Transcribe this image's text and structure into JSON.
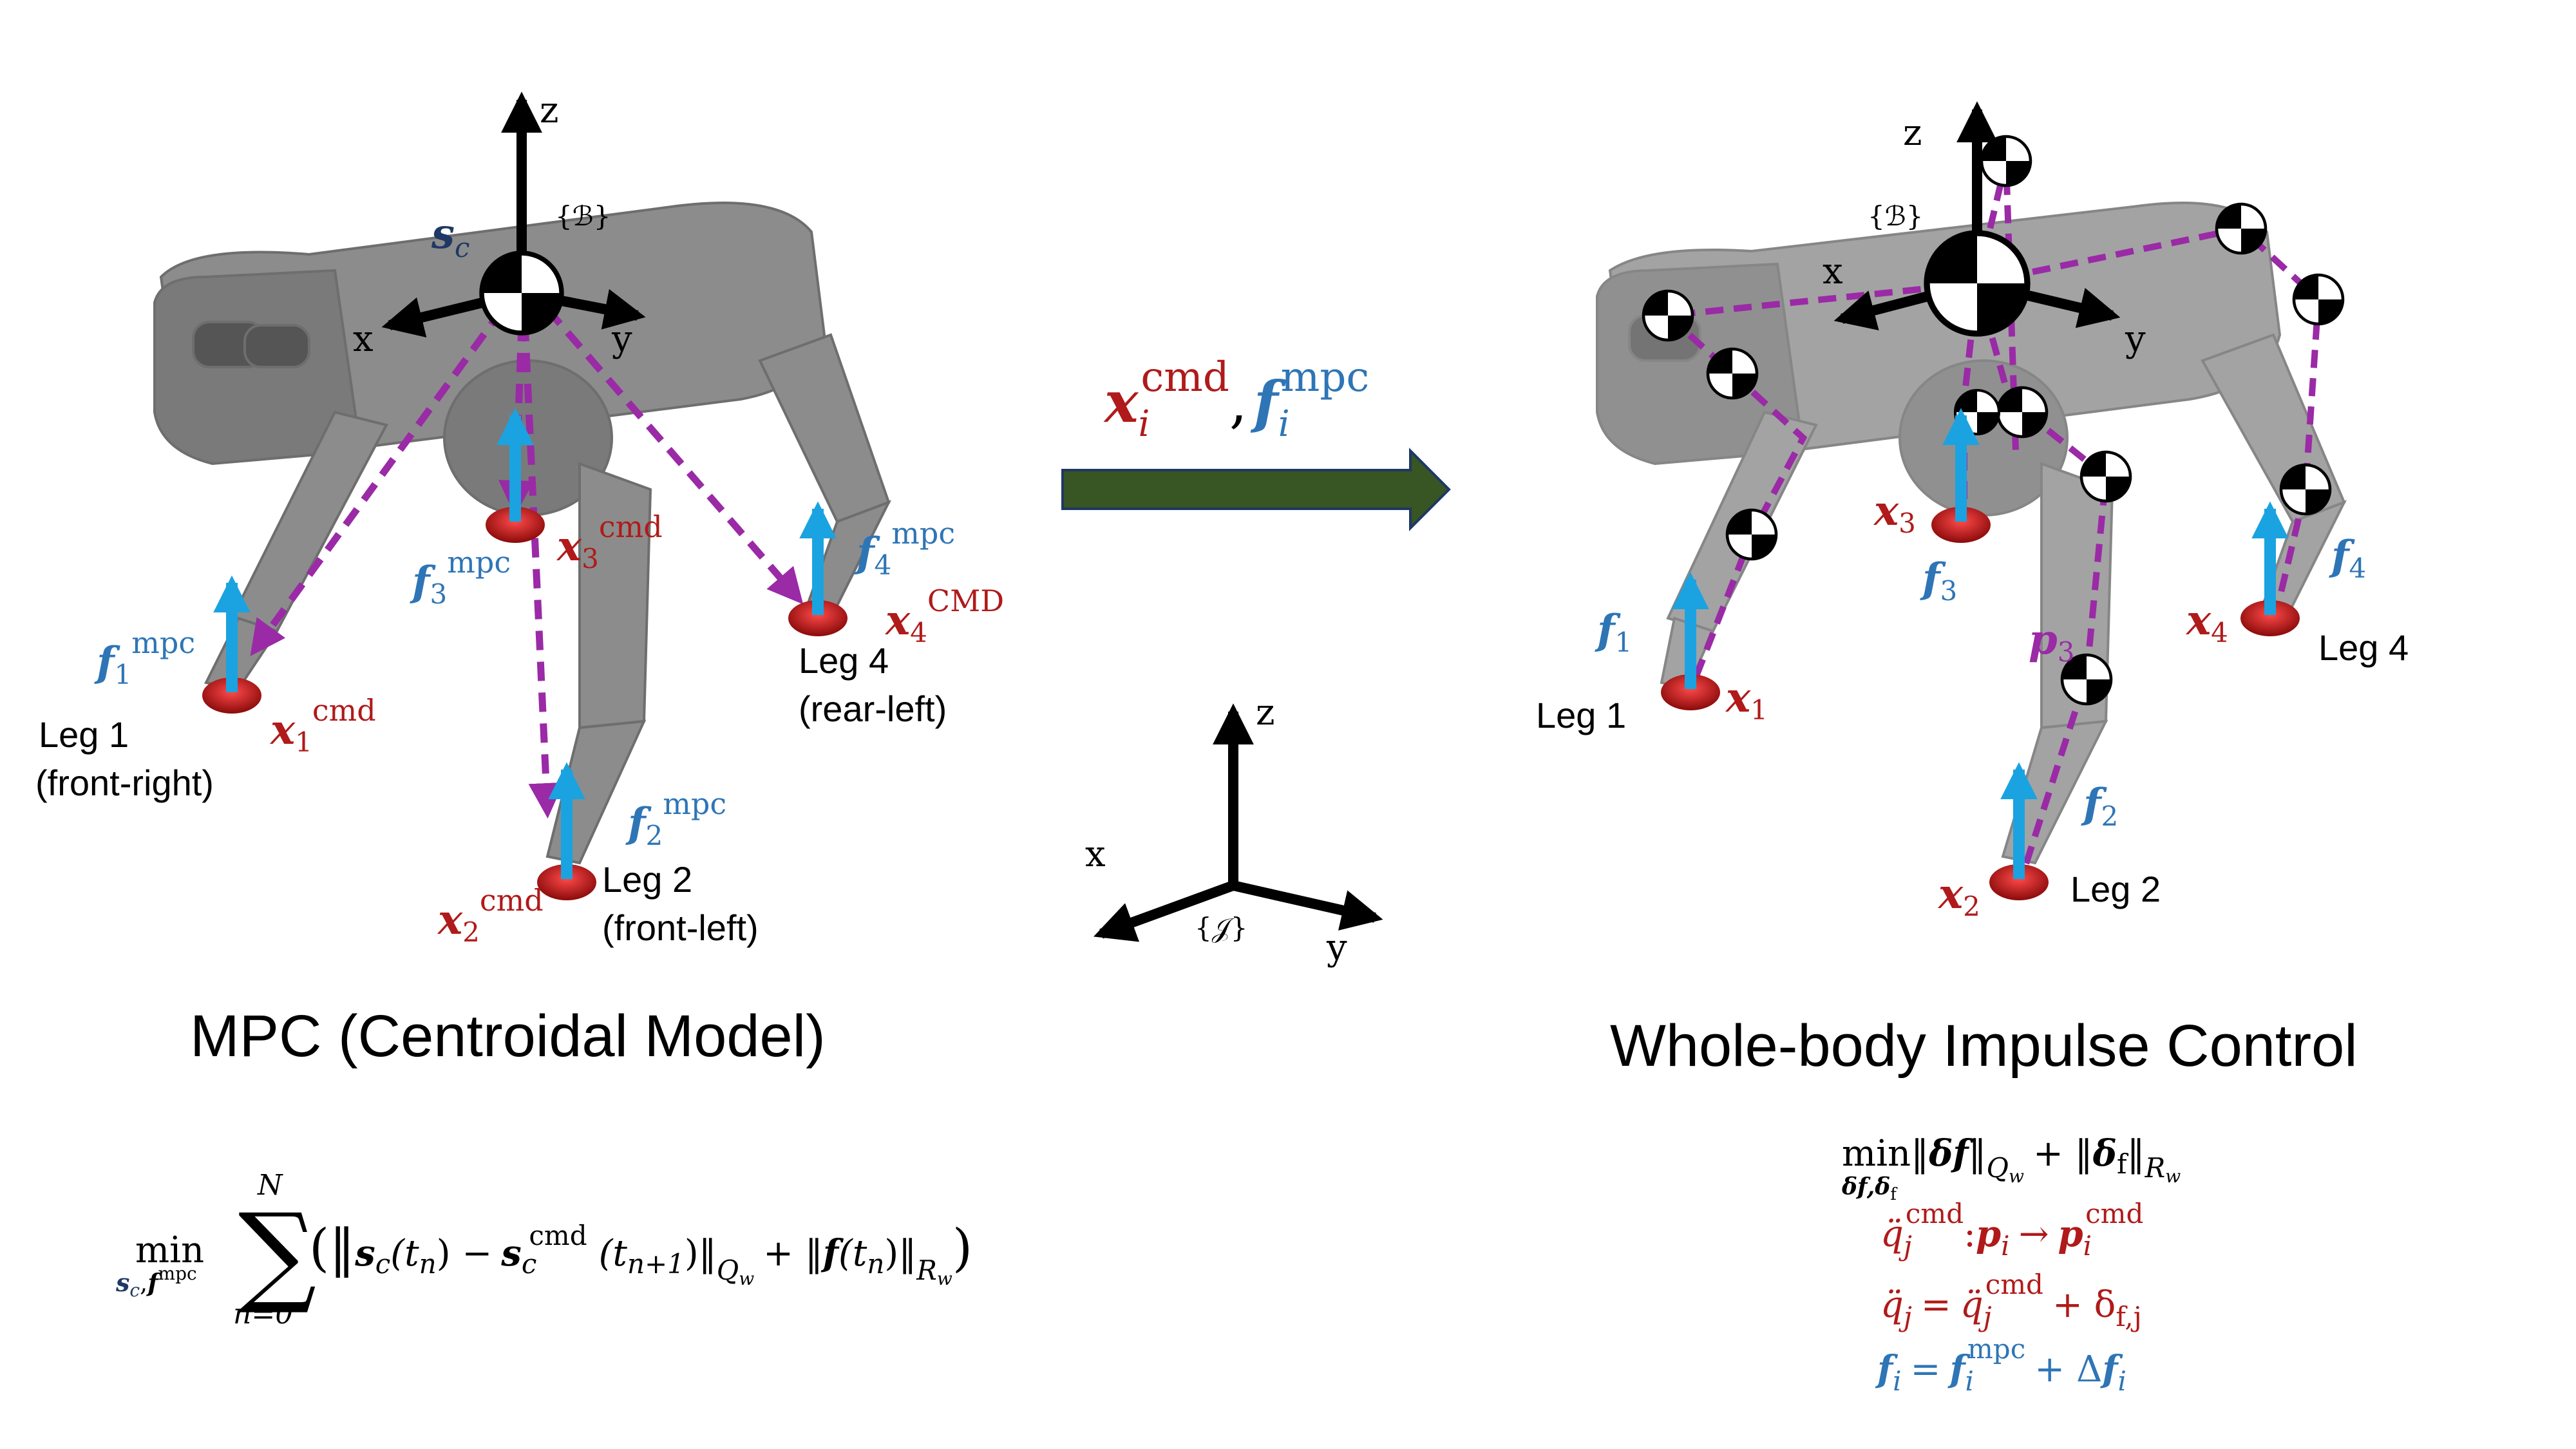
{
  "colors": {
    "red": "#b01a1a",
    "blue": "#2e75b6",
    "cyan": "#1aa3e0",
    "purple": "#9a2aa6",
    "navy": "#1f3864",
    "arrow_green": "#375623",
    "robot_gray": "#8c8c8c"
  },
  "left_panel": {
    "title": "MPC (Centroidal Model)",
    "frame_label": "{ℬ}",
    "axis_z": "z",
    "axis_x": "x",
    "axis_y": "y",
    "com_symbol": "s",
    "com_sub": "c",
    "force_symbol": "f",
    "pos_symbol": "x",
    "force_sup": "mpc",
    "pos_sup": "cmd",
    "pos_sup_leg4": "CMD",
    "legs": [
      {
        "index": "1",
        "name": "Leg 1",
        "desc": "(front-right)"
      },
      {
        "index": "2",
        "name": "Leg 2",
        "desc": "(front-left)"
      },
      {
        "index": "3",
        "name": "",
        "desc": ""
      },
      {
        "index": "4",
        "name": "Leg 4",
        "desc": "(rear-left)"
      }
    ]
  },
  "middle": {
    "label_x": "x",
    "label_x_sub": "i",
    "label_x_sup": "cmd",
    "label_comma": ",",
    "label_f": "f",
    "label_f_sub": "i",
    "label_f_sup": "mpc",
    "world_frame_label": "{𝒥}",
    "axis_z": "z",
    "axis_x": "x",
    "axis_y": "y"
  },
  "right_panel": {
    "title": "Whole-body Impulse Control",
    "frame_label": "{ℬ}",
    "axis_z": "z",
    "axis_x": "x",
    "axis_y": "y",
    "force_symbol": "f",
    "pos_symbol": "x",
    "p_symbol": "p",
    "p_sub": "3",
    "legs": [
      {
        "index": "1",
        "name": "Leg 1"
      },
      {
        "index": "2",
        "name": "Leg 2"
      },
      {
        "index": "3",
        "name": ""
      },
      {
        "index": "4",
        "name": "Leg 4"
      }
    ]
  },
  "equations": {
    "mpc": {
      "min": "min",
      "min_sub": "s",
      "min_sub_c": "c",
      "min_sub_rest": ",",
      "min_sub_f": "f",
      "min_sub_f_sup": "mpc",
      "sum": "∑",
      "sum_top": "N",
      "sum_bottom": "n=0",
      "body": "(‖s_c(t_n) − s_c^cmd (t_{n+1})‖_{Q_w} + ‖f(t_n)‖_{R_w})",
      "body_parts": {
        "open": "(‖",
        "s1": "s",
        "c1": "c",
        "t1": "(t",
        "n1": "n",
        "mid": ") −",
        "s2": "s",
        "c2": "c",
        "cmd": "cmd",
        "t2": "(t",
        "n2": "n+1",
        "close1": ")‖",
        "qw": "Q",
        "qw_sub": "w",
        "plus": "+ ‖",
        "f": "f",
        "t3": "(t",
        "n3": "n",
        "close2": ")‖",
        "rw": "R",
        "rw_sub": "w",
        "end": ")"
      }
    },
    "wbic": {
      "line1": {
        "min": "min",
        "min_sub": "δf,δ",
        "min_sub_f": "f",
        "norm1_open": "‖",
        "delta_f": "δf",
        "norm1_close": "‖",
        "q": "Q",
        "q_sub": "w",
        "plus": "+ ‖",
        "delta_ff": "δ",
        "delta_ff_sub": "f",
        "norm2_close": "‖",
        "r": "R",
        "r_sub": "w"
      },
      "line2": {
        "q": "q̈",
        "j": "j",
        "cmd": "cmd",
        "colon": ":",
        "p": "p",
        "i": "i",
        "arrow": "→",
        "p2": "p",
        "i2": "i",
        "cmd2": "cmd"
      },
      "line3": {
        "q": "q̈",
        "j": "j",
        "eq": "=",
        "q2": "q̈",
        "j2": "j",
        "cmd": "cmd",
        "plus": "+ δ",
        "fj": "f,j"
      },
      "line4": {
        "f": "f",
        "i": "i",
        "eq": "=",
        "f2": "f",
        "i2": "i",
        "mpc": "mpc",
        "plus": "+ Δ",
        "f3": "f",
        "i3": "i"
      }
    }
  }
}
